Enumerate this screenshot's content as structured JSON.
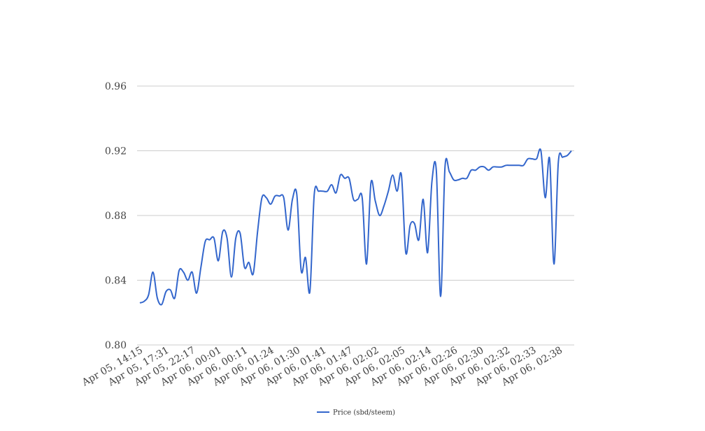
{
  "chart_data": {
    "type": "line",
    "title": "",
    "xlabel": "",
    "ylabel": "",
    "ylim": [
      0.8,
      0.96
    ],
    "y_ticks": [
      "0.80",
      "0.84",
      "0.88",
      "0.92",
      "0.96"
    ],
    "x_tick_labels": [
      "Apr 05, 14:15",
      "Apr 05, 17:31",
      "Apr 05, 22:17",
      "Apr 06, 00:01",
      "Apr 06, 00:11",
      "Apr 06, 01:24",
      "Apr 06, 01:30",
      "Apr 06, 01:41",
      "Apr 06, 01:47",
      "Apr 06, 02:02",
      "Apr 06, 02:05",
      "Apr 06, 02:14",
      "Apr 06, 02:26",
      "Apr 06, 02:30",
      "Apr 06, 02:32",
      "Apr 06, 02:33",
      "Apr 06, 02:38"
    ],
    "grid": true,
    "legend_position": "bottom",
    "series": [
      {
        "name": "Price (sbd/steem)",
        "color": "#3366cc",
        "values": [
          0.826,
          0.827,
          0.831,
          0.845,
          0.829,
          0.825,
          0.833,
          0.834,
          0.829,
          0.846,
          0.845,
          0.84,
          0.845,
          0.832,
          0.848,
          0.864,
          0.865,
          0.866,
          0.852,
          0.87,
          0.866,
          0.842,
          0.866,
          0.869,
          0.848,
          0.851,
          0.844,
          0.87,
          0.891,
          0.891,
          0.887,
          0.892,
          0.892,
          0.891,
          0.871,
          0.89,
          0.893,
          0.846,
          0.854,
          0.833,
          0.893,
          0.895,
          0.895,
          0.895,
          0.899,
          0.894,
          0.905,
          0.903,
          0.903,
          0.89,
          0.89,
          0.891,
          0.85,
          0.9,
          0.889,
          0.88,
          0.886,
          0.895,
          0.905,
          0.895,
          0.905,
          0.857,
          0.874,
          0.875,
          0.865,
          0.89,
          0.857,
          0.901,
          0.908,
          0.83,
          0.91,
          0.907,
          0.902,
          0.902,
          0.903,
          0.903,
          0.908,
          0.908,
          0.91,
          0.91,
          0.908,
          0.91,
          0.91,
          0.91,
          0.911,
          0.911,
          0.911,
          0.911,
          0.911,
          0.915,
          0.915,
          0.915,
          0.92,
          0.891,
          0.915,
          0.85,
          0.913,
          0.916,
          0.917,
          0.92
        ]
      }
    ]
  }
}
